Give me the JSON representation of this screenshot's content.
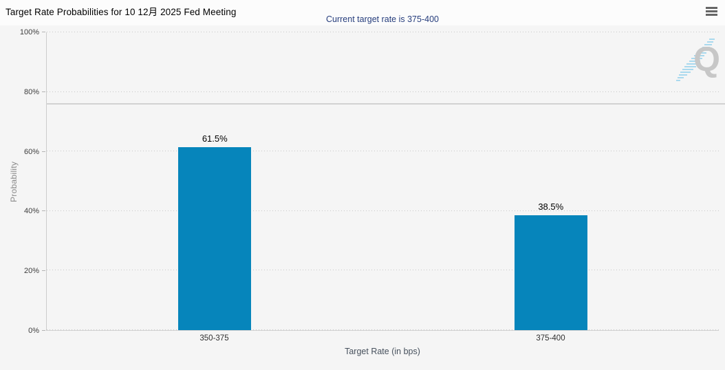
{
  "header": {
    "title": "Target Rate Probabilities for 10 12月 2025 Fed Meeting",
    "menu_icon": "hamburger-icon"
  },
  "chart_data": {
    "type": "bar",
    "title": "Target Rate Probabilities for 10 12月 2025 Fed Meeting",
    "subtitle": "Current target rate is 375-400",
    "categories": [
      "350-375",
      "375-400"
    ],
    "values": [
      61.5,
      38.5
    ],
    "value_labels": [
      "61.5%",
      "38.5%"
    ],
    "xlabel": "Target Rate (in bps)",
    "ylabel": "Probability",
    "ylim": [
      0,
      100
    ],
    "yticks": [
      "0%",
      "20%",
      "40%",
      "60%",
      "80%",
      "100%"
    ],
    "grid": "dotted-horizontal",
    "legend": "none",
    "reference_line_y": 75.8,
    "bar_color": "#0685bb",
    "watermark_letter": "Q"
  },
  "colors": {
    "background": "#f5f5f5",
    "bar": "#0685bb",
    "subtitle": "#263d7c",
    "gridline": "#c7c7c7",
    "axis_line": "#cccccc",
    "watermark_gray": "#c7c7c7",
    "watermark_blue": "#a9d9ee"
  }
}
